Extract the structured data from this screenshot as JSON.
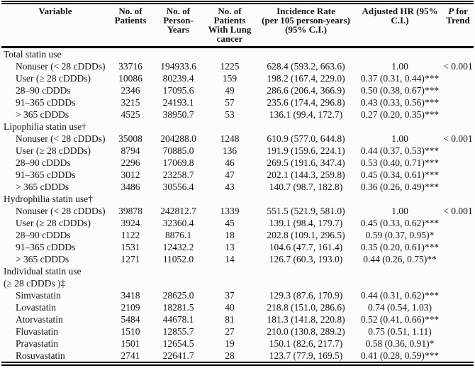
{
  "colors": {
    "rule": "#000000",
    "text": "#141414",
    "paper": "#fcfcfa"
  },
  "header": {
    "columns": [
      {
        "name": "variable",
        "lines": [
          "Variable"
        ]
      },
      {
        "name": "patients",
        "lines": [
          "No. of",
          "Patients"
        ]
      },
      {
        "name": "person_years",
        "lines": [
          "No. of",
          "Person-",
          "Years"
        ]
      },
      {
        "name": "lung_cancer",
        "lines": [
          "No. of",
          "Patients",
          "With Lung",
          "cancer"
        ]
      },
      {
        "name": "incidence",
        "lines": [
          "Incidence Rate",
          "(per 105 person-years)",
          "(95% C.I.)"
        ]
      },
      {
        "name": "hr",
        "lines": [
          "Adjusted HR (95%",
          "C.I.)"
        ]
      },
      {
        "name": "p_trend",
        "lines": [
          "P for",
          "Trend"
        ]
      }
    ]
  },
  "sections": [
    {
      "label_lines": [
        "Total statin use"
      ],
      "rows": [
        {
          "variable": "Nonuser (< 28 cDDDs)",
          "patients": "33716",
          "person_years": "194933.6",
          "lung_cancer": "1225",
          "incidence": "628.4 (593.2, 663.6)",
          "hr": "1.00",
          "p_trend": "< 0.001"
        },
        {
          "variable": "User (≥ 28 cDDDs)",
          "patients": "10086",
          "person_years": "80239.4",
          "lung_cancer": "159",
          "incidence": "198.2 (167.4, 229.0)",
          "hr": "0.37 (0.31, 0.44)***",
          "p_trend": ""
        },
        {
          "variable": "28–90 cDDDs",
          "patients": "2346",
          "person_years": "17095.6",
          "lung_cancer": "49",
          "incidence": "286.6 (206.4, 366.9)",
          "hr": "0.50 (0.38, 0.67)***",
          "p_trend": ""
        },
        {
          "variable": "91–365 cDDDs",
          "patients": "3215",
          "person_years": "24193.1",
          "lung_cancer": "57",
          "incidence": "235.6 (174.4, 296.8)",
          "hr": "0.43 (0.33, 0.56)***",
          "p_trend": ""
        },
        {
          "variable": "> 365 cDDDs",
          "patients": "4525",
          "person_years": "38950.7",
          "lung_cancer": "53",
          "incidence": "136.1 (99.4, 172.7)",
          "hr": "0.27 (0.20, 0.35)***",
          "p_trend": ""
        }
      ]
    },
    {
      "label_lines": [
        "Lipophilia statin use†"
      ],
      "rows": [
        {
          "variable": "Nonuser (< 28 cDDDs)",
          "patients": "35008",
          "person_years": "204288.0",
          "lung_cancer": "1248",
          "incidence": "610.9 (577.0, 644.8)",
          "hr": "1.00",
          "p_trend": "< 0.001"
        },
        {
          "variable": "User (≥ 28 cDDDs)",
          "patients": "8794",
          "person_years": "70885.0",
          "lung_cancer": "136",
          "incidence": "191.9 (159.6, 224.1)",
          "hr": "0.44 (0.37, 0.53)***",
          "p_trend": ""
        },
        {
          "variable": "28–90 cDDDs",
          "patients": "2296",
          "person_years": "17069.8",
          "lung_cancer": "46",
          "incidence": "269.5 (191.6, 347.4)",
          "hr": "0.53 (0.40, 0.71)***",
          "p_trend": ""
        },
        {
          "variable": "91–365 cDDDs",
          "patients": "3012",
          "person_years": "23258.7",
          "lung_cancer": "47",
          "incidence": "202.1 (144.3, 259.8)",
          "hr": "0.45 (0.34, 0.61)***",
          "p_trend": ""
        },
        {
          "variable": "> 365 cDDDs",
          "patients": "3486",
          "person_years": "30556.4",
          "lung_cancer": "43",
          "incidence": "140.7 (98.7, 182.8)",
          "hr": "0.36 (0.26, 0.49)***",
          "p_trend": ""
        }
      ]
    },
    {
      "label_lines": [
        "Hydrophilia statin use†"
      ],
      "rows": [
        {
          "variable": "Nonuser (< 28 cDDDs)",
          "patients": "39878",
          "person_years": "242812.7",
          "lung_cancer": "1339",
          "incidence": "551.5 (521.9, 581.0)",
          "hr": "1.00",
          "p_trend": "< 0.001"
        },
        {
          "variable": "User (≥ 28 cDDDs)",
          "patients": "3924",
          "person_years": "32360.4",
          "lung_cancer": "45",
          "incidence": "139.1 (98.4, 179.7)",
          "hr": "0.45 (0.33, 0.62)***",
          "p_trend": ""
        },
        {
          "variable": "28–90 cDDDs",
          "patients": "1122",
          "person_years": "8876.1",
          "lung_cancer": "18",
          "incidence": "202.8 (109.1, 296.5)",
          "hr": "0.59 (0.37, 0.95)*",
          "p_trend": ""
        },
        {
          "variable": "91–365 cDDDs",
          "patients": "1531",
          "person_years": "12432.2",
          "lung_cancer": "13",
          "incidence": "104.6 (47.7, 161.4)",
          "hr": "0.35 (0.20, 0.61)***",
          "p_trend": ""
        },
        {
          "variable": "> 365 cDDDs",
          "patients": "1271",
          "person_years": "11052.0",
          "lung_cancer": "14",
          "incidence": "126.7 (60.3, 193.0)",
          "hr": "0.44 (0.26, 0.75)**",
          "p_trend": ""
        }
      ]
    },
    {
      "label_lines": [
        "Individual statin use",
        "(≥ 28 cDDDs )‡"
      ],
      "rows": [
        {
          "variable": "Simvastatin",
          "patients": "3418",
          "person_years": "28625.0",
          "lung_cancer": "37",
          "incidence": "129.3 (87.6, 170.9)",
          "hr": "0.44 (0.31, 0.62)***",
          "p_trend": ""
        },
        {
          "variable": "Lovastatin",
          "patients": "2109",
          "person_years": "18281.5",
          "lung_cancer": "40",
          "incidence": "218.8 (151.0, 286.6)",
          "hr": "0.74 (0.54, 1.03)",
          "p_trend": ""
        },
        {
          "variable": "Atorvastatin",
          "patients": "5484",
          "person_years": "44678.1",
          "lung_cancer": "81",
          "incidence": "181.3 (141.8, 220.8)",
          "hr": "0.52 (0.41, 0.66)***",
          "p_trend": ""
        },
        {
          "variable": "Fluvastatin",
          "patients": "1510",
          "person_years": "12855.7",
          "lung_cancer": "27",
          "incidence": "210.0 (130.8, 289.2)",
          "hr": "0.75 (0.51, 1.11)",
          "p_trend": ""
        },
        {
          "variable": "Pravastatin",
          "patients": "1501",
          "person_years": "12654.5",
          "lung_cancer": "19",
          "incidence": "150.1 (82.6, 217.7)",
          "hr": "0.58 (0.36, 0.91)*",
          "p_trend": ""
        },
        {
          "variable": "Rosuvastatin",
          "patients": "2741",
          "person_years": "22641.7",
          "lung_cancer": "28",
          "incidence": "123.7 (77.9, 169.5)",
          "hr": "0.41 (0.28, 0.59)***",
          "p_trend": ""
        }
      ]
    }
  ]
}
